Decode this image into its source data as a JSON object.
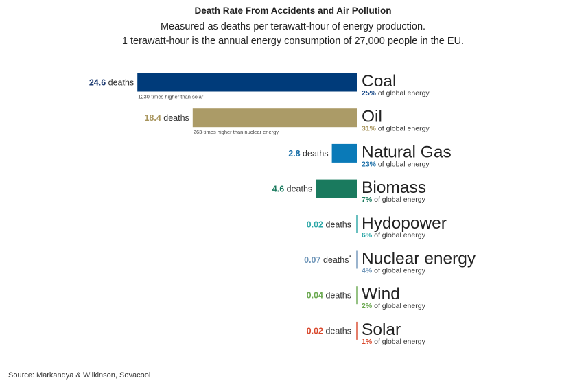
{
  "chart_data": {
    "type": "bar",
    "orientation": "horizontal",
    "title": "Death Rate From Accidents and Air Pollution",
    "subtitle_lines": [
      "Measured as deaths per terawatt-hour of energy production.",
      "1 terawatt-hour is the annual energy consumption of 27,000 people in the EU."
    ],
    "unit_label": "deaths",
    "share_suffix": "of global energy",
    "source": "Source: Markandya & Wilkinson, Sovacool",
    "items": [
      {
        "category": "Coal",
        "value": 24.6,
        "value_text": "24.6",
        "share": "25%",
        "color": "#003b7a",
        "share_color": "#1f4e8c",
        "value_color": "#1f3d73",
        "note": "1230-times higher than solar",
        "asterisk": ""
      },
      {
        "category": "Oil",
        "value": 18.4,
        "value_text": "18.4",
        "share": "31%",
        "color": "#ab9b67",
        "share_color": "#a8955d",
        "value_color": "#a8955d",
        "note": "263-times higher than nuclear energy",
        "asterisk": ""
      },
      {
        "category": "Natural Gas",
        "value": 2.8,
        "value_text": "2.8",
        "share": "23%",
        "color": "#0a7ab8",
        "share_color": "#1a6fa8",
        "value_color": "#1a6fa8",
        "note": "",
        "asterisk": ""
      },
      {
        "category": "Biomass",
        "value": 4.6,
        "value_text": "4.6",
        "share": "7%",
        "color": "#1a7a5e",
        "share_color": "#1a7a5e",
        "value_color": "#1a7a5e",
        "note": "",
        "asterisk": ""
      },
      {
        "category": "Hydopower",
        "value": 0.02,
        "value_text": "0.02",
        "share": "6%",
        "color": "#2aa6a6",
        "share_color": "#2aa6a6",
        "value_color": "#2aa6a6",
        "note": "",
        "asterisk": ""
      },
      {
        "category": "Nuclear energy",
        "value": 0.07,
        "value_text": "0.07",
        "share": "4%",
        "color": "#6e95b8",
        "share_color": "#6e95b8",
        "value_color": "#6e95b8",
        "note": "",
        "asterisk": "*"
      },
      {
        "category": "Wind",
        "value": 0.04,
        "value_text": "0.04",
        "share": "2%",
        "color": "#6aa84f",
        "share_color": "#6aa84f",
        "value_color": "#6aa84f",
        "note": "",
        "asterisk": ""
      },
      {
        "category": "Solar",
        "value": 0.02,
        "value_text": "0.02",
        "share": "1%",
        "color": "#d9472b",
        "share_color": "#d9472b",
        "value_color": "#d9472b",
        "note": "",
        "asterisk": ""
      }
    ]
  }
}
